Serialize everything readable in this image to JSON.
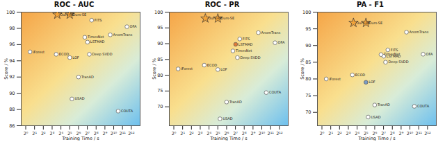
{
  "chart_data": [
    {
      "type": "scatter",
      "title": "ROC - AUC",
      "x_label": "Training Time / s",
      "y_label": "Score / %",
      "log": "x",
      "grid": false,
      "xlim": [
        0.7,
        8192
      ],
      "ylim": [
        86,
        100
      ],
      "xticks": [
        {
          "value": 1,
          "label": "2⁰"
        },
        {
          "value": 2,
          "label": "2¹"
        },
        {
          "value": 4,
          "label": "2²"
        },
        {
          "value": 8,
          "label": "2³"
        },
        {
          "value": 16,
          "label": "2⁴"
        },
        {
          "value": 32,
          "label": "2⁵"
        },
        {
          "value": 64,
          "label": "2⁶"
        },
        {
          "value": 128,
          "label": "2⁷"
        },
        {
          "value": 256,
          "label": "2⁸"
        },
        {
          "value": 512,
          "label": "2⁹"
        },
        {
          "value": 1024,
          "label": "2¹⁰"
        },
        {
          "value": 2048,
          "label": "2¹¹"
        },
        {
          "value": 4096,
          "label": "2¹²"
        }
      ],
      "yticks": [
        86,
        88,
        90,
        92,
        94,
        96,
        98,
        100
      ],
      "series": [
        {
          "marker": "star",
          "color": "#f2a33a",
          "x": [
            12,
            32
          ],
          "values": [
            99.7,
            99.7
          ],
          "labels": [
            "Ours-PE",
            "Ours-SE"
          ]
        },
        {
          "marker": "circle",
          "color": "#ffffff",
          "x": [
            1.4,
            11,
            32,
            64,
            38,
            130,
            150,
            105,
            180,
            780,
            2900,
            1450
          ],
          "values": [
            95.1,
            94.8,
            94.4,
            92.0,
            89.3,
            96.3,
            94.8,
            96.9,
            99.0,
            97.2,
            98.2,
            87.8
          ],
          "colors": [
            "#ffffff",
            "#ffffff",
            "#ffffff",
            "#ffffff",
            "#ffffff",
            "#ffffff",
            "#ffffff",
            "#ffffff",
            "#ffffff",
            "#ffffff",
            "#ffffff",
            "#ffffff"
          ],
          "labels": [
            "iForest",
            "ECOD",
            "LOF",
            "TranAD",
            "USAD",
            "LSTMAD",
            "Deep SVDD",
            "TimesNet",
            "FITS",
            "AnomTrans",
            "OFA",
            "COUTA"
          ]
        }
      ]
    },
    {
      "type": "scatter",
      "title": "ROC - PR",
      "x_label": "Training Time / s",
      "y_label": "Score / %",
      "log": "x",
      "grid": false,
      "xlim": [
        0.7,
        8192
      ],
      "ylim": [
        64,
        100
      ],
      "xticks": [
        {
          "value": 1,
          "label": "2⁰"
        },
        {
          "value": 2,
          "label": "2¹"
        },
        {
          "value": 4,
          "label": "2²"
        },
        {
          "value": 8,
          "label": "2³"
        },
        {
          "value": 16,
          "label": "2⁴"
        },
        {
          "value": 32,
          "label": "2⁵"
        },
        {
          "value": 64,
          "label": "2⁶"
        },
        {
          "value": 128,
          "label": "2⁷"
        },
        {
          "value": 256,
          "label": "2⁸"
        },
        {
          "value": 512,
          "label": "2⁹"
        },
        {
          "value": 1024,
          "label": "2¹⁰"
        },
        {
          "value": 2048,
          "label": "2¹¹"
        },
        {
          "value": 4096,
          "label": "2¹²"
        }
      ],
      "yticks": [
        70,
        75,
        80,
        85,
        90,
        95,
        100
      ],
      "series": [
        {
          "marker": "star",
          "color": "#f2a33a",
          "x": [
            12,
            32
          ],
          "values": [
            98.0,
            98.0
          ],
          "labels": [
            "Ours-PE",
            "Ours-SE"
          ]
        },
        {
          "marker": "circle",
          "color": "#ffffff",
          "x": [
            1.4,
            11,
            32,
            64,
            38,
            130,
            150,
            105,
            180,
            780,
            2900,
            1450
          ],
          "values": [
            82.0,
            83.2,
            81.8,
            71.5,
            66.2,
            89.8,
            85.6,
            87.7,
            91.5,
            93.5,
            90.3,
            74.5
          ],
          "colors": [
            "#ffffff",
            "#ffffff",
            "#ffffff",
            "#ffffff",
            "#ffffff",
            "#e07b39",
            "#ffffff",
            "#ffffff",
            "#ffffff",
            "#ffffff",
            "#ffffff",
            "#ffffff"
          ],
          "labels": [
            "iForest",
            "ECOD",
            "LOF",
            "TranAD",
            "USAD",
            "LSTMAD",
            "Deep SVDD",
            "TimesNet",
            "FITS",
            "AnomTrans",
            "OFA",
            "COUTA"
          ]
        }
      ]
    },
    {
      "type": "scatter",
      "title": "PA - F1",
      "x_label": "Training Time / s",
      "y_label": "Score / %",
      "log": "x",
      "grid": false,
      "xlim": [
        0.7,
        8192
      ],
      "ylim": [
        66,
        100
      ],
      "xticks": [
        {
          "value": 1,
          "label": "2⁰"
        },
        {
          "value": 2,
          "label": "2¹"
        },
        {
          "value": 4,
          "label": "2²"
        },
        {
          "value": 8,
          "label": "2³"
        },
        {
          "value": 16,
          "label": "2⁴"
        },
        {
          "value": 32,
          "label": "2⁵"
        },
        {
          "value": 64,
          "label": "2⁶"
        },
        {
          "value": 128,
          "label": "2⁷"
        },
        {
          "value": 256,
          "label": "2⁸"
        },
        {
          "value": 512,
          "label": "2⁹"
        },
        {
          "value": 1024,
          "label": "2¹⁰"
        },
        {
          "value": 2048,
          "label": "2¹¹"
        },
        {
          "value": 4096,
          "label": "2¹²"
        }
      ],
      "yticks": [
        70,
        75,
        80,
        85,
        90,
        95,
        100
      ],
      "series": [
        {
          "marker": "star",
          "color": "#f2a33a",
          "x": [
            12,
            32
          ],
          "values": [
            96.8,
            96.8
          ],
          "labels": [
            "Ours-PE",
            "Ours-SE"
          ]
        },
        {
          "marker": "circle",
          "color": "#ffffff",
          "x": [
            1.4,
            11,
            32,
            64,
            38,
            130,
            150,
            105,
            180,
            780,
            2900,
            1450
          ],
          "values": [
            80.0,
            81.2,
            79.0,
            72.2,
            68.6,
            86.8,
            85.0,
            87.3,
            88.7,
            94.0,
            87.4,
            71.8
          ],
          "colors": [
            "#ffffff",
            "#ffffff",
            "#7a9cc6",
            "#ffffff",
            "#ffffff",
            "#ffffff",
            "#ffffff",
            "#ffffff",
            "#ffffff",
            "#ffffff",
            "#ffffff",
            "#ffffff"
          ],
          "labels": [
            "iForest",
            "ECOD",
            "LOF",
            "TranAD",
            "USAD",
            "LSTMAD",
            "Deep SVDD",
            "TimesNet",
            "FITS",
            "AnomTrans",
            "OFA",
            "COUTA"
          ]
        }
      ]
    }
  ]
}
